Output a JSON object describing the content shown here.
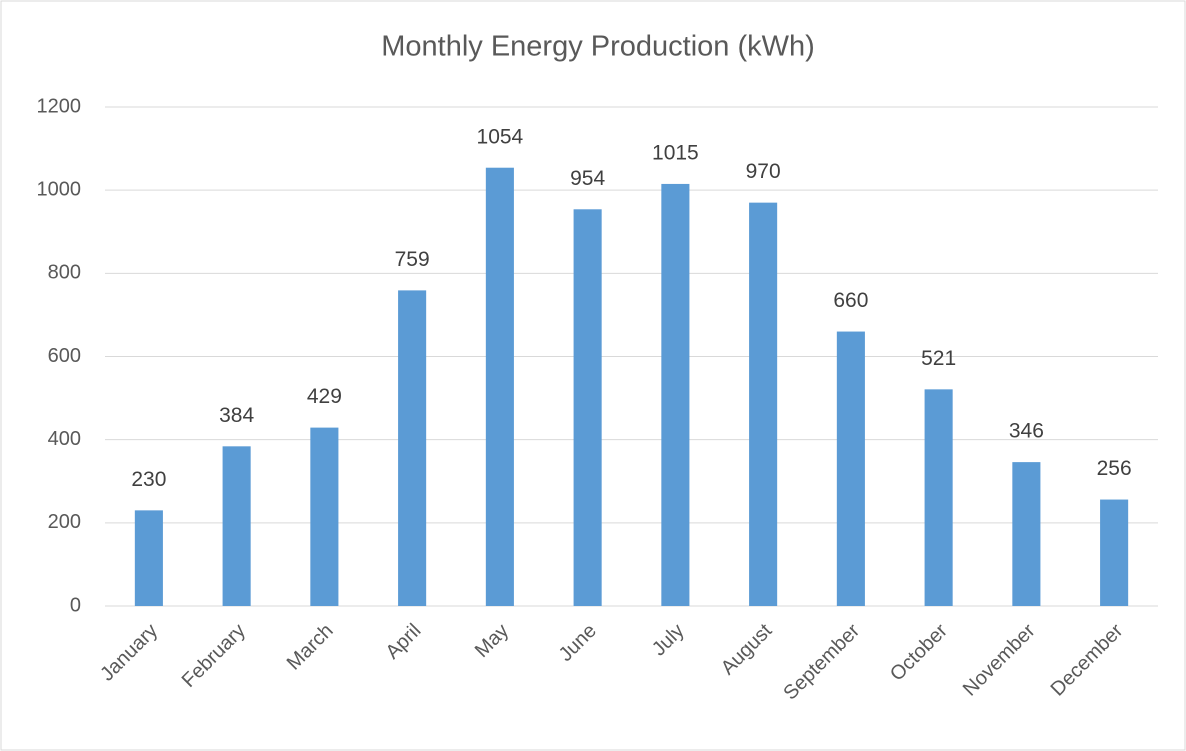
{
  "chart_data": {
    "type": "bar",
    "title": "Monthly Energy Production (kWh)",
    "categories": [
      "January",
      "February",
      "March",
      "April",
      "May",
      "June",
      "July",
      "August",
      "September",
      "October",
      "November",
      "December"
    ],
    "values": [
      230,
      384,
      429,
      759,
      1054,
      954,
      1015,
      970,
      660,
      521,
      346,
      256
    ],
    "color": "#5b9bd5",
    "ylim": [
      0,
      1200
    ],
    "yticks": [
      0,
      200,
      400,
      600,
      800,
      1000,
      1200
    ],
    "grid": true
  }
}
